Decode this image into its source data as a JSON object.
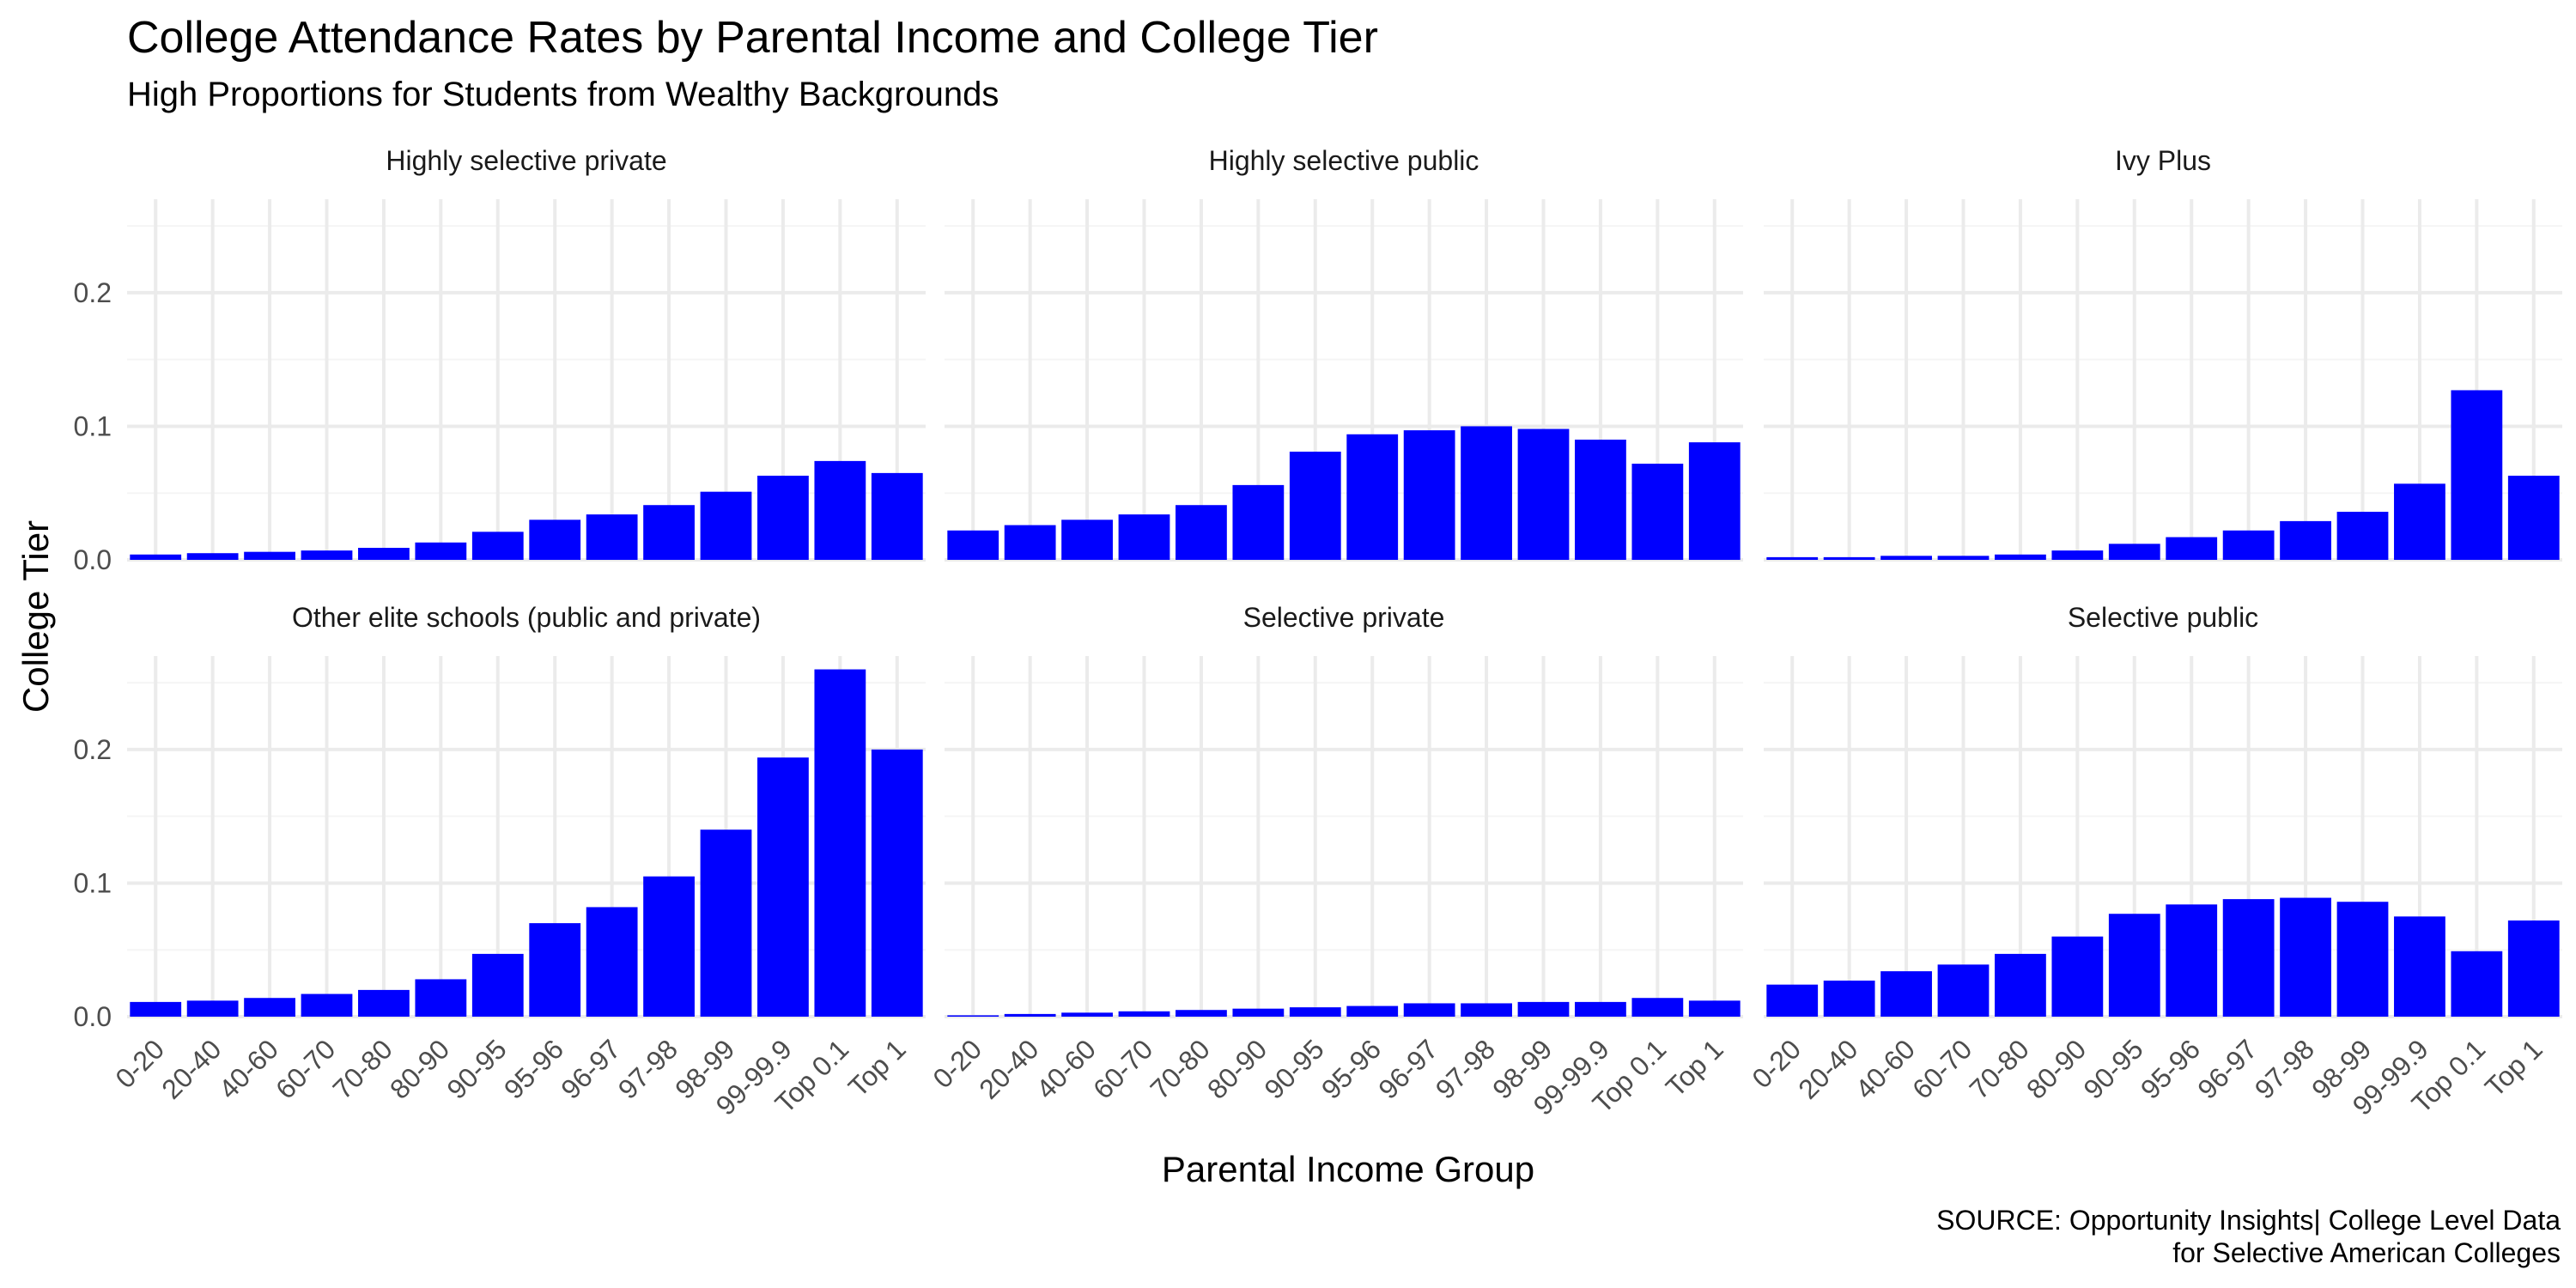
{
  "title": "College Attendance Rates by Parental Income and College Tier",
  "subtitle": "High Proportions for Students from Wealthy Backgrounds",
  "caption_lines": [
    "SOURCE: Opportunity Insights| College Level Data",
    "for Selective American Colleges"
  ],
  "colors": {
    "bar": "#0000ff",
    "grid_major": "#ebebeb",
    "grid_minor": "#f5f5f5"
  },
  "chart_data": {
    "type": "bar",
    "layout": "facet-grid-2x3",
    "xlabel": "Parental Income Group",
    "ylabel": "College Tier",
    "ylim": [
      0,
      0.27
    ],
    "yticks": [
      0.0,
      0.1,
      0.2
    ],
    "ytick_labels": [
      "0.0",
      "0.1",
      "0.2"
    ],
    "grid": true,
    "legend": "none",
    "categories": [
      "0-20",
      "20-40",
      "40-60",
      "60-70",
      "70-80",
      "80-90",
      "90-95",
      "95-96",
      "96-97",
      "97-98",
      "98-99",
      "99-99.9",
      "Top 0.1",
      "Top 1"
    ],
    "panels": [
      {
        "name": "Highly selective private",
        "values": [
          0.004,
          0.005,
          0.006,
          0.007,
          0.009,
          0.013,
          0.021,
          0.03,
          0.034,
          0.041,
          0.051,
          0.063,
          0.074,
          0.065
        ]
      },
      {
        "name": "Highly selective public",
        "values": [
          0.022,
          0.026,
          0.03,
          0.034,
          0.041,
          0.056,
          0.081,
          0.094,
          0.097,
          0.1,
          0.098,
          0.09,
          0.072,
          0.088
        ]
      },
      {
        "name": "Ivy Plus",
        "values": [
          0.002,
          0.002,
          0.003,
          0.003,
          0.004,
          0.007,
          0.012,
          0.017,
          0.022,
          0.029,
          0.036,
          0.057,
          0.127,
          0.063
        ]
      },
      {
        "name": "Other elite schools (public and private)",
        "values": [
          0.011,
          0.012,
          0.014,
          0.017,
          0.02,
          0.028,
          0.047,
          0.07,
          0.082,
          0.105,
          0.14,
          0.194,
          0.26,
          0.2
        ]
      },
      {
        "name": "Selective private",
        "values": [
          0.001,
          0.002,
          0.003,
          0.004,
          0.005,
          0.006,
          0.007,
          0.008,
          0.01,
          0.01,
          0.011,
          0.011,
          0.014,
          0.012
        ]
      },
      {
        "name": "Selective public",
        "values": [
          0.024,
          0.027,
          0.034,
          0.039,
          0.047,
          0.06,
          0.077,
          0.084,
          0.088,
          0.089,
          0.086,
          0.075,
          0.049,
          0.072
        ]
      }
    ]
  }
}
